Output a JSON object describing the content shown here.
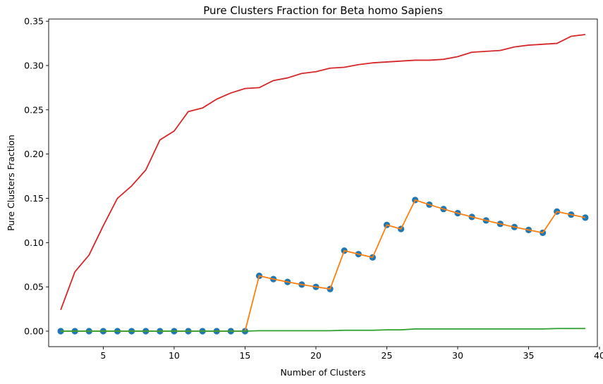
{
  "chart_data": {
    "type": "line",
    "title": "Pure Clusters Fraction for Beta homo Sapiens",
    "xlabel": "Number of Clusters",
    "ylabel": "Pure Clusters Fraction",
    "xlim": [
      1.15,
      39.85
    ],
    "ylim": [
      -0.0175,
      0.3525
    ],
    "xticks": [
      5,
      10,
      15,
      20,
      25,
      30,
      35,
      40
    ],
    "xtick_labels": [
      "5",
      "10",
      "15",
      "20",
      "25",
      "30",
      "35",
      "40"
    ],
    "yticks": [
      0.0,
      0.05,
      0.1,
      0.15,
      0.2,
      0.25,
      0.3,
      0.35
    ],
    "ytick_labels": [
      "0.00",
      "0.05",
      "0.10",
      "0.15",
      "0.20",
      "0.25",
      "0.30",
      "0.35"
    ],
    "grid": false,
    "x": [
      2,
      3,
      4,
      5,
      6,
      7,
      8,
      9,
      10,
      11,
      12,
      13,
      14,
      15,
      16,
      17,
      18,
      19,
      20,
      21,
      22,
      23,
      24,
      25,
      26,
      27,
      28,
      29,
      30,
      31,
      32,
      33,
      34,
      35,
      36,
      37,
      38,
      39
    ],
    "series": [
      {
        "kind": "scatter",
        "color": "#1f77b4",
        "values": [
          0,
          0,
          0,
          0,
          0,
          0,
          0,
          0,
          0,
          0,
          0,
          0,
          0,
          0,
          0.0625,
          0.0588,
          0.0556,
          0.0526,
          0.05,
          0.0476,
          0.0909,
          0.087,
          0.0833,
          0.12,
          0.1154,
          0.1481,
          0.1429,
          0.1379,
          0.1333,
          0.129,
          0.125,
          0.1212,
          0.1176,
          0.1143,
          0.1111,
          0.1351,
          0.1316,
          0.1282
        ]
      },
      {
        "kind": "line",
        "color": "#ff7f0e",
        "values": [
          0,
          0,
          0,
          0,
          0,
          0,
          0,
          0,
          0,
          0,
          0,
          0,
          0,
          0,
          0.0625,
          0.0588,
          0.0556,
          0.0526,
          0.05,
          0.0476,
          0.0909,
          0.087,
          0.0833,
          0.12,
          0.1154,
          0.1481,
          0.1429,
          0.1379,
          0.1333,
          0.129,
          0.125,
          0.1212,
          0.1176,
          0.1143,
          0.1111,
          0.1351,
          0.1316,
          0.1282
        ]
      },
      {
        "kind": "line",
        "color": "#2ca02c",
        "values": [
          0,
          0,
          0,
          0,
          0,
          0,
          0,
          0,
          0,
          0,
          0,
          0,
          0,
          0,
          0.0005,
          0.0005,
          0.0005,
          0.0005,
          0.0005,
          0.0005,
          0.001,
          0.001,
          0.001,
          0.0015,
          0.0015,
          0.0025,
          0.0025,
          0.0025,
          0.0025,
          0.0025,
          0.0025,
          0.0025,
          0.0025,
          0.0025,
          0.0025,
          0.003,
          0.003,
          0.003
        ]
      },
      {
        "kind": "line",
        "color": "#d62728",
        "values": [
          0.024,
          0.067,
          0.086,
          0.119,
          0.15,
          0.164,
          0.182,
          0.216,
          0.226,
          0.248,
          0.252,
          0.262,
          0.269,
          0.274,
          0.275,
          0.283,
          0.286,
          0.291,
          0.293,
          0.297,
          0.298,
          0.301,
          0.303,
          0.304,
          0.305,
          0.306,
          0.306,
          0.307,
          0.31,
          0.315,
          0.316,
          0.317,
          0.321,
          0.323,
          0.324,
          0.325,
          0.333,
          0.335
        ]
      }
    ]
  }
}
